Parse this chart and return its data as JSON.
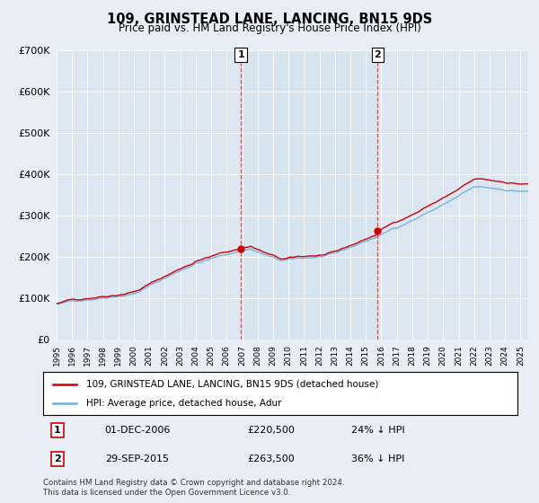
{
  "title": "109, GRINSTEAD LANE, LANCING, BN15 9DS",
  "subtitle": "Price paid vs. HM Land Registry's House Price Index (HPI)",
  "legend_line1": "109, GRINSTEAD LANE, LANCING, BN15 9DS (detached house)",
  "legend_line2": "HPI: Average price, detached house, Adur",
  "footnote": "Contains HM Land Registry data © Crown copyright and database right 2024.\nThis data is licensed under the Open Government Licence v3.0.",
  "sale1_date": "01-DEC-2006",
  "sale1_price": "£220,500",
  "sale1_hpi": "24% ↓ HPI",
  "sale2_date": "29-SEP-2015",
  "sale2_price": "£263,500",
  "sale2_hpi": "36% ↓ HPI",
  "hpi_color": "#6baed6",
  "price_color": "#cc0000",
  "bg_color": "#e8eef5",
  "plot_bg_color": "#dce6f0",
  "shade_color": "#d0e4f5",
  "ylim": [
    0,
    700000
  ],
  "yticks": [
    0,
    100000,
    200000,
    300000,
    400000,
    500000,
    600000,
    700000
  ],
  "sale1_year": 2006.917,
  "sale1_price_val": 220500,
  "sale2_year": 2015.75,
  "sale2_price_val": 263500,
  "xmin": 1995.0,
  "xmax": 2025.5
}
